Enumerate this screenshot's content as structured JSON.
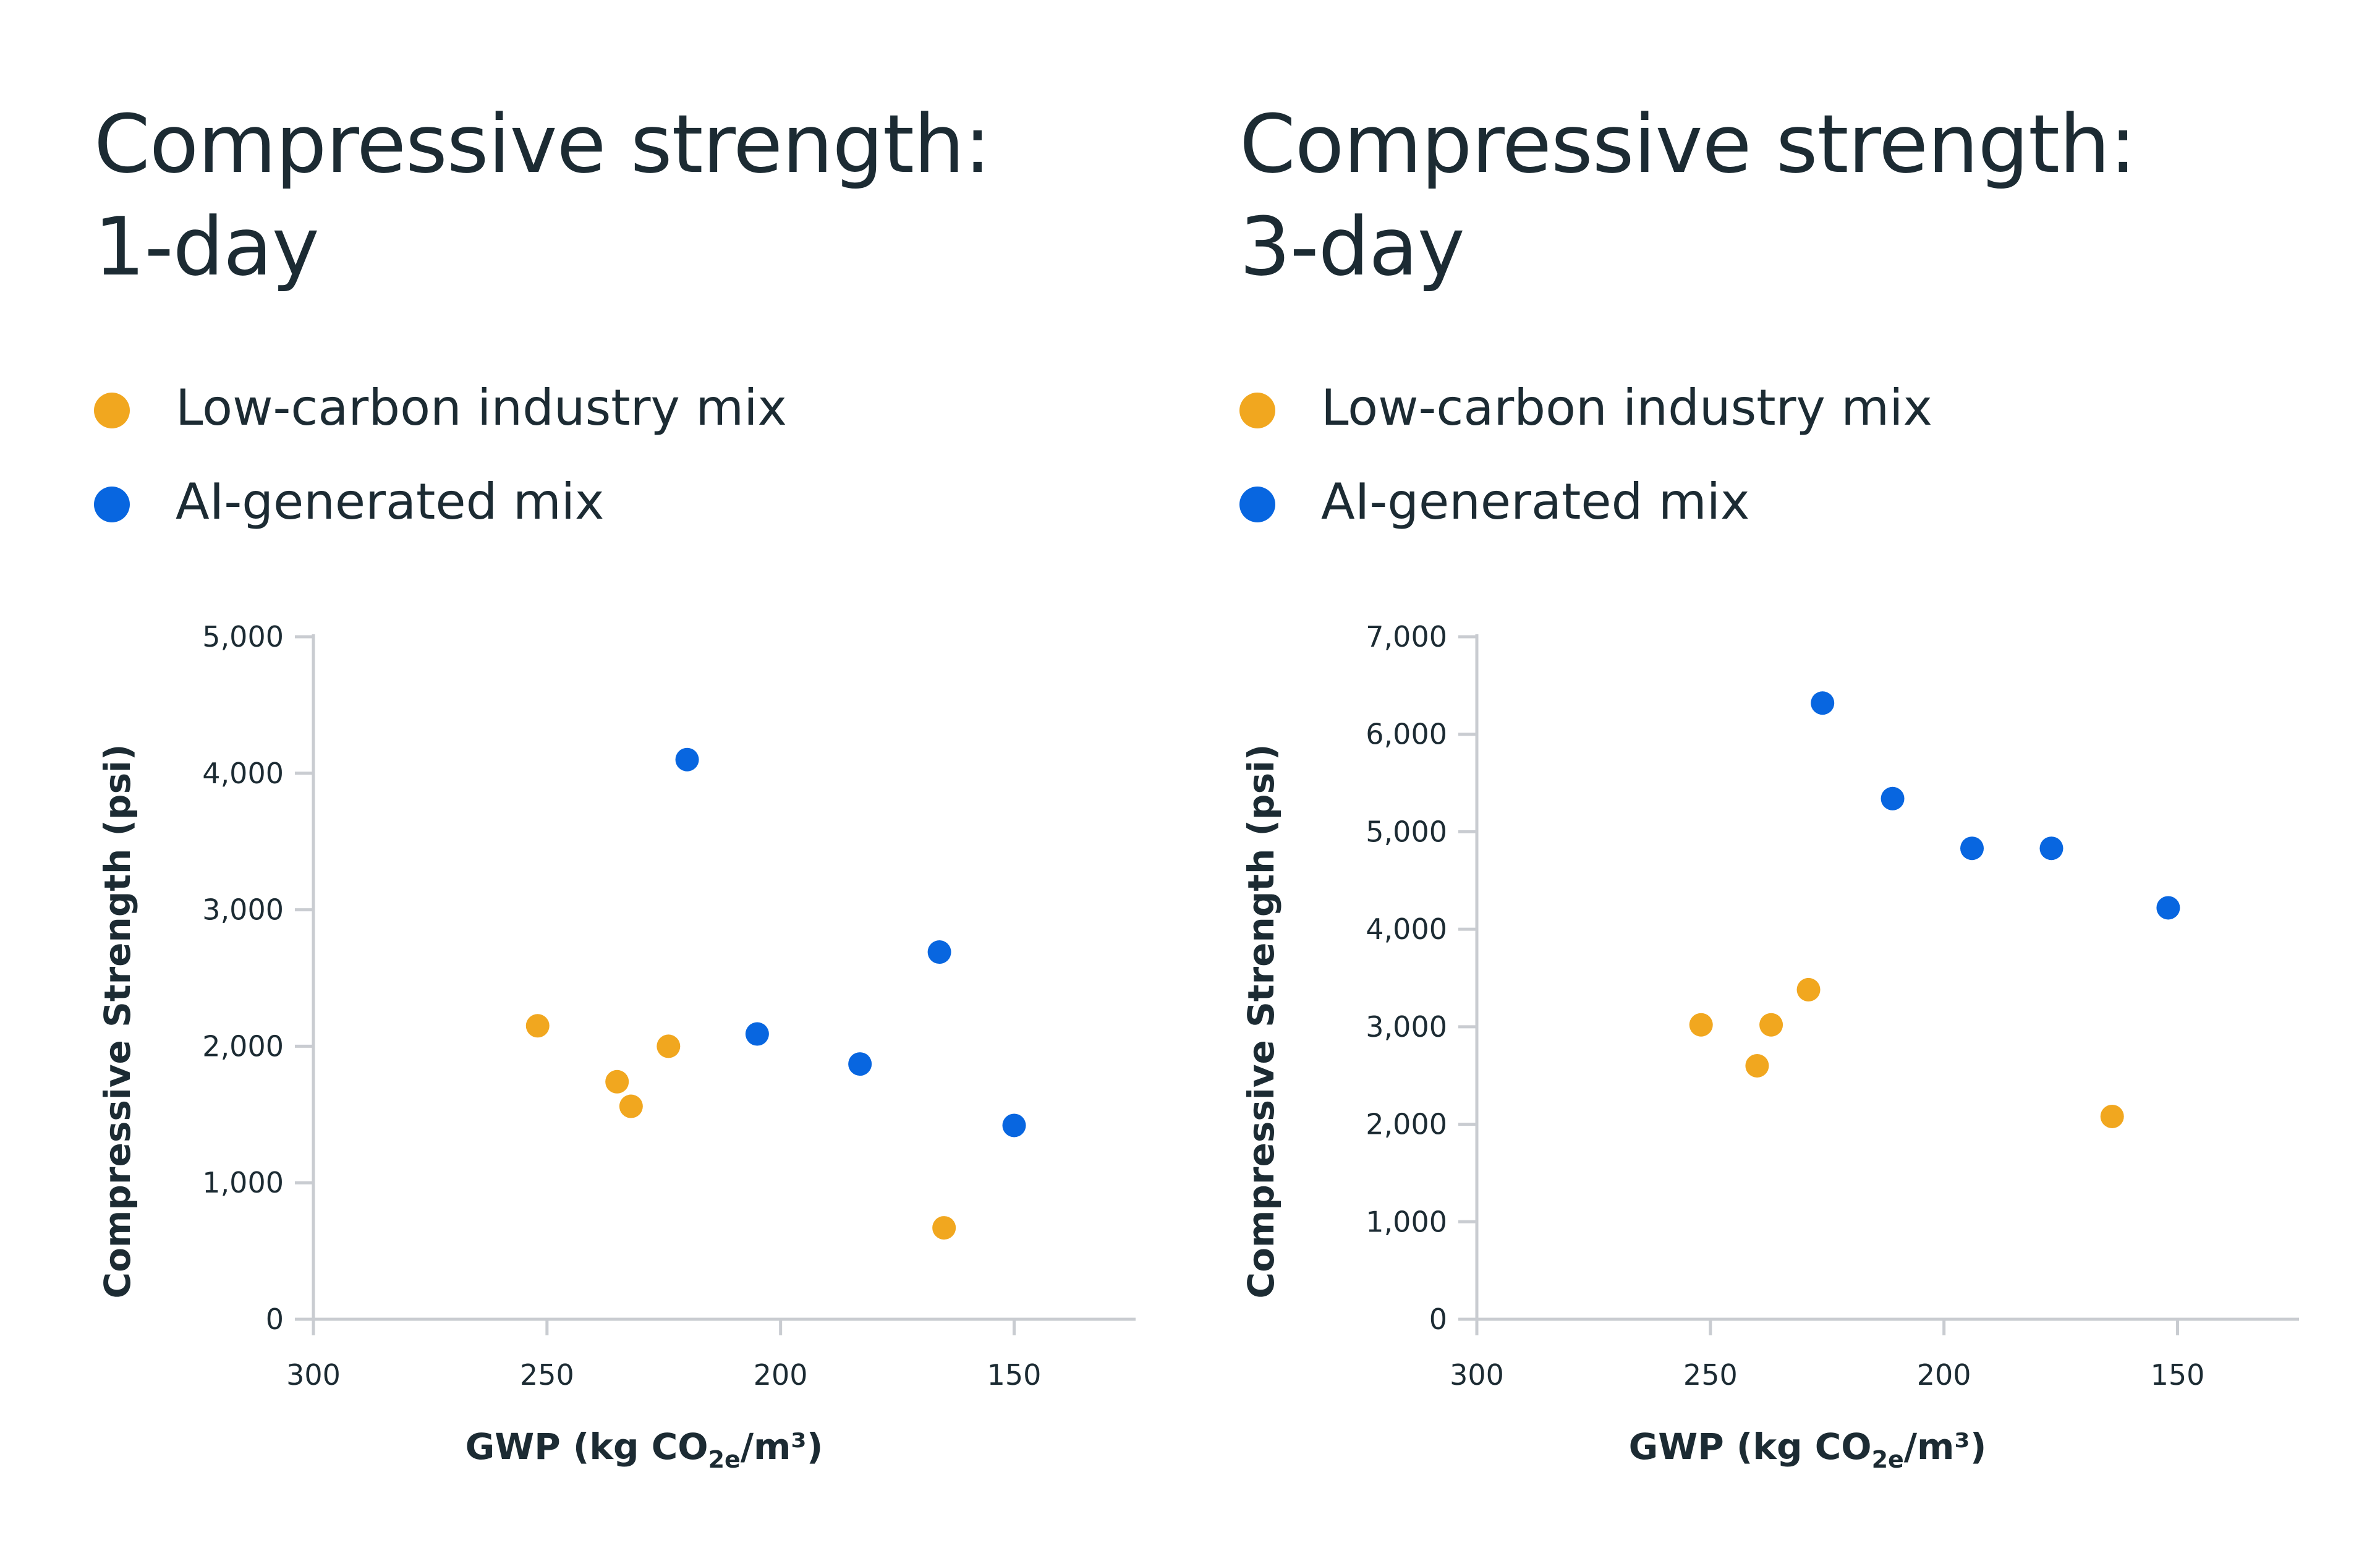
{
  "colors": {
    "low_carbon": "#f1a71f",
    "ai_generated": "#0866e0",
    "axis": "#c9ccd1",
    "text": "#1c2b33"
  },
  "chart_data": [
    {
      "type": "scatter",
      "title_line1": "Compressive strength:",
      "title_line2": "1-day",
      "xlabel": "GWP (kg CO2e/m³)",
      "xlabel_parts": {
        "main": "GWP (kg CO",
        "sub": "2e",
        "tail": "/m³)"
      },
      "ylabel": "Compressive Strength (psi)",
      "x_reversed": true,
      "xlim": [
        300,
        124
      ],
      "ylim": [
        0,
        5000
      ],
      "x_ticks": [
        300,
        250,
        200,
        150
      ],
      "x_tick_labels": [
        "300",
        "250",
        "200",
        "150"
      ],
      "y_ticks": [
        0,
        1000,
        2000,
        3000,
        4000,
        5000
      ],
      "y_tick_labels": [
        "0",
        "1,000",
        "2,000",
        "3,000",
        "4,000",
        "5,000"
      ],
      "legend": [
        "Low-carbon industry mix",
        "AI-generated mix"
      ],
      "grid": false,
      "series": [
        {
          "name": "Low-carbon industry mix",
          "color": "#f1a71f",
          "points": [
            {
              "x": 252,
              "y": 2150
            },
            {
              "x": 235,
              "y": 1740
            },
            {
              "x": 232,
              "y": 1560
            },
            {
              "x": 224,
              "y": 2000
            },
            {
              "x": 165,
              "y": 670
            }
          ]
        },
        {
          "name": "AI-generated mix",
          "color": "#0866e0",
          "points": [
            {
              "x": 220,
              "y": 4100
            },
            {
              "x": 205,
              "y": 2090
            },
            {
              "x": 183,
              "y": 1870
            },
            {
              "x": 166,
              "y": 2690
            },
            {
              "x": 150,
              "y": 1420
            }
          ]
        }
      ]
    },
    {
      "type": "scatter",
      "title_line1": "Compressive strength:",
      "title_line2": "3-day",
      "xlabel": "GWP (kg CO2e/m³)",
      "xlabel_parts": {
        "main": "GWP (kg CO",
        "sub": "2e",
        "tail": "/m³)"
      },
      "ylabel": "Compressive Strength (psi)",
      "x_reversed": true,
      "xlim": [
        300,
        124
      ],
      "ylim": [
        0,
        7000
      ],
      "x_ticks": [
        300,
        250,
        200,
        150
      ],
      "x_tick_labels": [
        "300",
        "250",
        "200",
        "150"
      ],
      "y_ticks": [
        0,
        1000,
        2000,
        3000,
        4000,
        5000,
        6000,
        7000
      ],
      "y_tick_labels": [
        "0",
        "1,000",
        "2,000",
        "3,000",
        "4,000",
        "5,000",
        "6,000",
        "7,000"
      ],
      "legend": [
        "Low-carbon industry mix",
        "AI-generated mix"
      ],
      "grid": false,
      "series": [
        {
          "name": "Low-carbon industry mix",
          "color": "#f1a71f",
          "points": [
            {
              "x": 252,
              "y": 3020
            },
            {
              "x": 240,
              "y": 2600
            },
            {
              "x": 237,
              "y": 3020
            },
            {
              "x": 229,
              "y": 3380
            },
            {
              "x": 164,
              "y": 2080
            }
          ]
        },
        {
          "name": "AI-generated mix",
          "color": "#0866e0",
          "points": [
            {
              "x": 226,
              "y": 6320
            },
            {
              "x": 211,
              "y": 5340
            },
            {
              "x": 194,
              "y": 4830
            },
            {
              "x": 177,
              "y": 4830
            },
            {
              "x": 152,
              "y": 4220
            }
          ]
        }
      ]
    }
  ]
}
